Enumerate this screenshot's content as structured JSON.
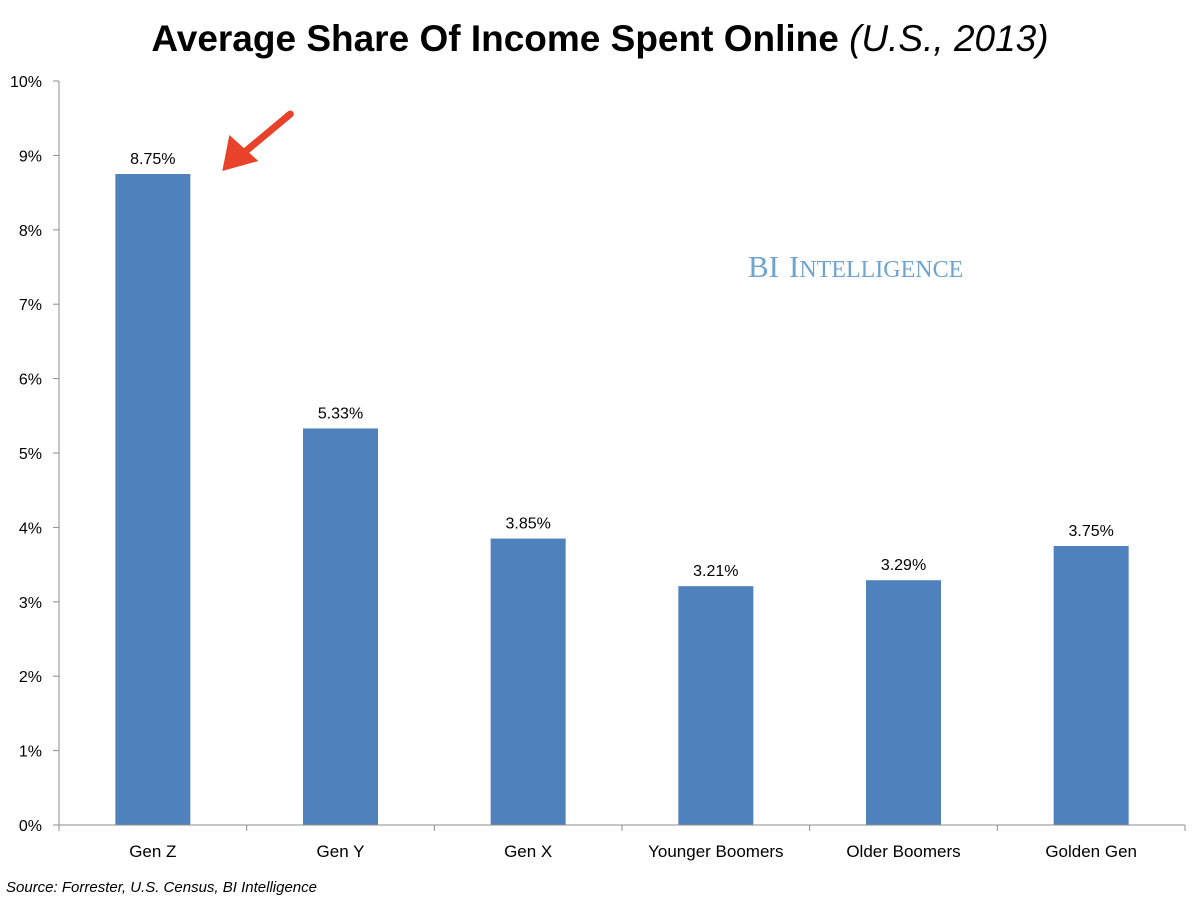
{
  "chart_data": {
    "type": "bar",
    "title": "Average Share Of Income Spent Online",
    "title_suffix": "(U.S., 2013)",
    "categories": [
      "Gen Z",
      "Gen Y",
      "Gen X",
      "Younger Boomers",
      "Older Boomers",
      "Golden Gen"
    ],
    "values": [
      8.75,
      5.33,
      3.85,
      3.21,
      3.29,
      3.75
    ],
    "data_labels": [
      "8.75%",
      "5.33%",
      "3.85%",
      "3.21%",
      "3.29%",
      "3.75%"
    ],
    "y_ticks": [
      "0%",
      "1%",
      "2%",
      "3%",
      "4%",
      "5%",
      "6%",
      "7%",
      "8%",
      "9%",
      "10%"
    ],
    "ylim": [
      0,
      10
    ],
    "xlabel": "",
    "ylabel": "",
    "grid": false,
    "highlighted_category": "Gen Z",
    "bar_color": "#4f81bd",
    "arrow_color": "#e8432a"
  },
  "watermark": {
    "initials": "BI",
    "word_first": "I",
    "word_rest": "NTELLIGENCE"
  },
  "source": "Source: Forrester, U.S. Census, BI Intelligence"
}
